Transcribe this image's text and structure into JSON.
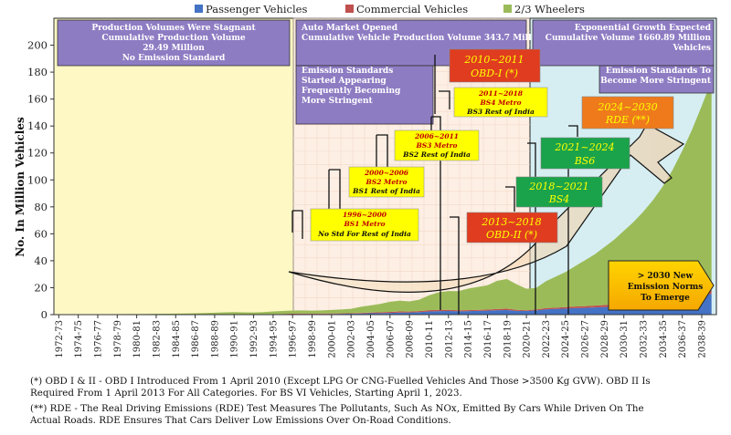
{
  "chart_data": {
    "type": "area",
    "ylabel": "No. In Million Vehicles",
    "ylim": [
      0,
      220
    ],
    "yticks": [
      0,
      20,
      40,
      60,
      80,
      100,
      120,
      140,
      160,
      180,
      200
    ],
    "grid": false,
    "legend_position": "top",
    "x": [
      "1972-73",
      "1973-74",
      "1974-75",
      "1975-76",
      "1976-77",
      "1977-78",
      "1978-79",
      "1979-80",
      "1980-81",
      "1981-82",
      "1982-83",
      "1983-84",
      "1984-85",
      "1985-86",
      "1986-87",
      "1987-88",
      "1988-89",
      "1989-90",
      "1990-91",
      "1991-92",
      "1992-93",
      "1993-94",
      "1994-95",
      "1995-96",
      "1996-97",
      "1997-98",
      "1998-99",
      "1999-00",
      "2000-01",
      "2001-02",
      "2002-03",
      "2003-04",
      "2004-05",
      "2005-06",
      "2006-07",
      "2007-08",
      "2008-09",
      "2009-10",
      "2010-11",
      "2011-12",
      "2012-13",
      "2013-14",
      "2014-15",
      "2015-16",
      "2016-17",
      "2017-18",
      "2018-19",
      "2019-20",
      "2020-21",
      "2021-22",
      "2022-23",
      "2023-24",
      "2024-25",
      "2025-26",
      "2026-27",
      "2027-28",
      "2028-29",
      "2029-30",
      "2030-31",
      "2031-32",
      "2032-33",
      "2033-34",
      "2034-35",
      "2035-36",
      "2036-37",
      "2037-38",
      "2038-39",
      "2039-40"
    ],
    "x_tick_labels": [
      "1972-73",
      "1974-75",
      "1976-77",
      "1978-79",
      "1980-81",
      "1982-83",
      "1984-85",
      "1986-87",
      "1988-89",
      "1990-91",
      "1992-93",
      "1994-95",
      "1996-97",
      "1998-99",
      "2000-01",
      "2002-03",
      "2004-05",
      "2006-07",
      "2008-09",
      "2010-11",
      "2012-13",
      "2014-15",
      "2016-17",
      "2018-19",
      "2020-21",
      "2022-23",
      "2024-25",
      "2026-27",
      "2028-29",
      "2030-31",
      "2032-33",
      "2034-35",
      "2036-37",
      "2038-39"
    ],
    "series": [
      {
        "name": "Passenger Vehicles",
        "color": "#4472c4",
        "values": [
          0.04,
          0.04,
          0.04,
          0.04,
          0.05,
          0.05,
          0.05,
          0.05,
          0.05,
          0.06,
          0.06,
          0.06,
          0.07,
          0.08,
          0.1,
          0.12,
          0.15,
          0.18,
          0.2,
          0.17,
          0.16,
          0.2,
          0.25,
          0.3,
          0.35,
          0.4,
          0.4,
          0.45,
          0.55,
          0.6,
          0.65,
          0.85,
          1.0,
          1.1,
          1.3,
          1.5,
          1.6,
          1.9,
          2.4,
          2.6,
          2.7,
          2.5,
          2.6,
          2.8,
          3.0,
          3.3,
          3.4,
          2.8,
          2.7,
          3.1,
          3.9,
          4.2,
          4.5,
          4.8,
          5.0,
          5.3,
          5.6,
          6.0,
          6.5,
          7.0,
          7.5,
          8.0,
          9.0,
          10.0,
          11.0,
          12.5,
          14.0,
          15.5
        ]
      },
      {
        "name": "Commercial Vehicles",
        "color": "#c0504d",
        "values": [
          0.04,
          0.04,
          0.04,
          0.04,
          0.04,
          0.05,
          0.05,
          0.05,
          0.05,
          0.05,
          0.06,
          0.06,
          0.07,
          0.07,
          0.08,
          0.1,
          0.12,
          0.14,
          0.15,
          0.13,
          0.13,
          0.15,
          0.2,
          0.25,
          0.3,
          0.32,
          0.3,
          0.3,
          0.3,
          0.3,
          0.35,
          0.45,
          0.55,
          0.65,
          0.75,
          0.85,
          0.7,
          0.7,
          0.9,
          0.95,
          0.85,
          0.7,
          0.7,
          0.75,
          0.75,
          0.85,
          1.0,
          0.75,
          0.55,
          0.7,
          0.9,
          1.0,
          1.1,
          1.2,
          1.3,
          1.4,
          1.5,
          1.6,
          1.7,
          1.8,
          1.9,
          2.0,
          2.2,
          2.4,
          2.6,
          2.8,
          3.0,
          3.2
        ]
      },
      {
        "name": "2/3 Wheelers",
        "color": "#9bbb59",
        "values": [
          0.1,
          0.1,
          0.15,
          0.15,
          0.2,
          0.2,
          0.25,
          0.3,
          0.35,
          0.4,
          0.45,
          0.55,
          0.6,
          0.7,
          0.85,
          1.0,
          1.2,
          1.4,
          1.5,
          1.4,
          1.3,
          1.5,
          1.9,
          2.2,
          2.4,
          2.4,
          2.3,
          2.4,
          2.6,
          2.9,
          3.3,
          4.5,
          5.3,
          6.2,
          7.5,
          8.0,
          7.5,
          8.5,
          11.0,
          13.0,
          14.0,
          14.2,
          16.0,
          17.0,
          18.0,
          21.0,
          22.0,
          19.0,
          16.0,
          16.0,
          20.0,
          23.0,
          26.0,
          30.0,
          34.0,
          38.0,
          43.0,
          48.0,
          54.0,
          60.0,
          67.0,
          75.0,
          84.0,
          95.0,
          108.0,
          122.0,
          138.0,
          155.0
        ]
      }
    ],
    "periods": [
      {
        "title": "Production Volumes Were Stagnant",
        "line2": "Cumulative Production Volume",
        "line3": "29.49 Million",
        "line4": "No Emission Standard"
      },
      {
        "title": "Auto Market Opened",
        "line2": "Cumulative Vehicle Production Volume 343.7 Million",
        "note1": "Emission Standards",
        "note2": "Started Appearing",
        "note3": "Frequently Becoming",
        "note4": "More Stringent"
      },
      {
        "title": "Exponential Growth Expected",
        "line2": "Cumulative Volume 1660.89 Million",
        "line3": "Vehicles",
        "note1": "Emission Standards To",
        "note2": "Become More Stringent"
      }
    ],
    "annotations": [
      {
        "l1": "1996~2000",
        "l2": "BS1 Metro",
        "l3": "No Std For Rest of India"
      },
      {
        "l1": "2000~2006",
        "l2": "BS2 Metro",
        "l3": "BS1 Rest of India"
      },
      {
        "l1": "2006~2011",
        "l2": "BS3 Metro",
        "l3": "BS2 Rest of India"
      },
      {
        "l1": "2011~2018",
        "l2": "BS4 Metro",
        "l3": "BS3 Rest of India"
      },
      {
        "l1": "2010~2011",
        "l2": "OBD-I (*)"
      },
      {
        "l1": "2013~2018",
        "l2": "OBD-II (*)"
      },
      {
        "l1": "2018~2021",
        "l2": "BS4"
      },
      {
        "l1": "2021~2024",
        "l2": "BS6"
      },
      {
        "l1": "2024~2030",
        "l2": "RDE (**)"
      },
      {
        "l1": "> 2030 New",
        "l2": "Emission Norms",
        "l3": "To Emerge"
      }
    ]
  },
  "footnotes": {
    "fn1_l1": "(*) OBD I & II - OBD I Introduced From 1 April 2010 (Except LPG Or CNG-Fuelled Vehicles And Those >3500 Kg GVW). OBD II Is",
    "fn1_l2": "Required From 1 April 2013 For All Categories. For BS VI Vehicles, Starting April 1, 2023.",
    "fn2_l1": "(**) RDE - The Real Driving Emissions (RDE) Test Measures The Pollutants, Such As NOx, Emitted By Cars While Driven On The",
    "fn2_l2": "Actual Roads. RDE Ensures That Cars Deliver Low Emissions Over On-Road Conditions."
  }
}
